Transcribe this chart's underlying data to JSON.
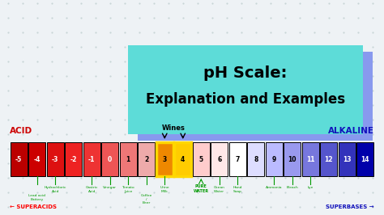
{
  "title_line1": "pH Scale:",
  "title_line2": "Explanation and Examples",
  "title_bg_color": "#5DDCD8",
  "title_bg_shadow": "#8899EE",
  "background_color": "#EEF2F5",
  "acid_label": "ACID",
  "alkaline_label": "ALKALINE",
  "acid_color": "#CC0000",
  "alkaline_color": "#1111BB",
  "superacids_label": "← SUPERACIDS",
  "superbases_label": "SUPERBASES →",
  "wines_label": "Wines",
  "ph_values": [
    -5,
    -4,
    -3,
    -2,
    -1,
    0,
    1,
    2,
    3,
    4,
    5,
    6,
    7,
    8,
    9,
    10,
    11,
    12,
    13,
    14
  ],
  "bar_colors": [
    "#BB0000",
    "#CC0000",
    "#DD1111",
    "#EE2222",
    "#EE3333",
    "#EE5555",
    "#EE7777",
    "#EEAAAA",
    "#EE8800",
    "#FFCC00",
    "#FFCCCC",
    "#FFE8E8",
    "#FFFFFF",
    "#DDDDFF",
    "#BBBBFF",
    "#9999EE",
    "#7777DD",
    "#5555CC",
    "#3333BB",
    "#0000AA"
  ],
  "yellow_highlight_indices": [
    8,
    9
  ],
  "text_white_indices": [
    0,
    1,
    2,
    3,
    4,
    5,
    16,
    17,
    18,
    19
  ],
  "annotations_below": {
    "2": [
      "Hydrochloric\nAcid",
      0.55
    ],
    "1": [
      "Lead acid\nBattery",
      0.75
    ],
    "4": [
      "Gastric\nAcid",
      0.55
    ],
    "5": [
      "Vinegar",
      0.55
    ],
    "6": [
      "Tomato\nJuice",
      0.55
    ],
    "7": [
      "Coffee\n/\nBeer",
      0.75
    ],
    "8": [
      "Urine\nMilk",
      0.55
    ],
    "10": [
      "PURE\nWATER",
      0.55
    ],
    "11": [
      "Ocean\nWater",
      0.55
    ],
    "12": [
      "Hand\nSoap",
      0.55
    ],
    "14": [
      "Ammonia",
      0.55
    ],
    "15": [
      "Bleach",
      0.55
    ],
    "16": [
      "Lye",
      0.55
    ]
  },
  "annotation_color": "#009900",
  "dot_color": "#BBCCCC",
  "pure_water_arrow": true
}
